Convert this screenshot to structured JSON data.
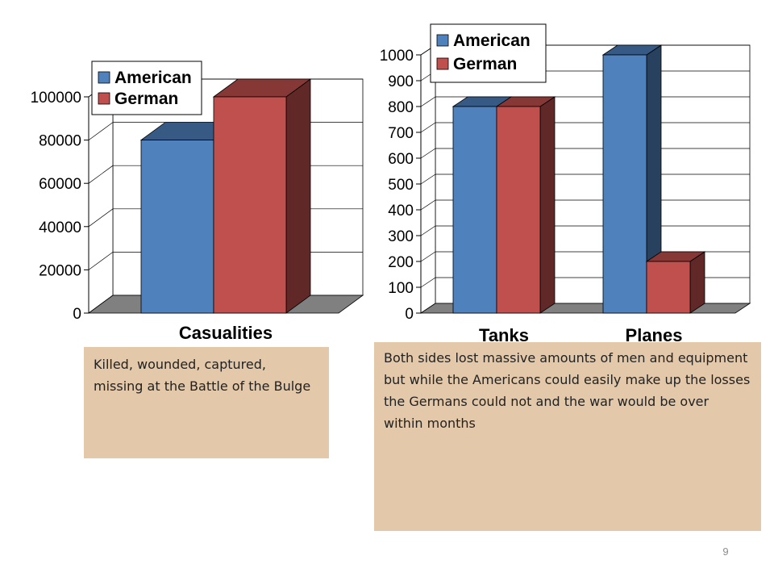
{
  "chart_data": [
    {
      "type": "bar",
      "categories": [
        "Casualities"
      ],
      "series": [
        {
          "name": "American",
          "values": [
            80000
          ],
          "color": "#4f81bd"
        },
        {
          "name": "German",
          "values": [
            100000
          ],
          "color": "#c0504d"
        }
      ],
      "yticks": [
        "0",
        "20000",
        "40000",
        "60000",
        "80000",
        "100000"
      ],
      "ylim": [
        0,
        100000
      ],
      "grid": true,
      "legend": "top-left",
      "title": "",
      "xlabel": "",
      "ylabel": ""
    },
    {
      "type": "bar",
      "categories": [
        "Tanks",
        "Planes"
      ],
      "series": [
        {
          "name": "American",
          "values": [
            800,
            1000
          ],
          "color": "#4f81bd"
        },
        {
          "name": "German",
          "values": [
            800,
            200
          ],
          "color": "#c0504d"
        }
      ],
      "yticks": [
        "0",
        "100",
        "200",
        "300",
        "400",
        "500",
        "600",
        "700",
        "800",
        "900",
        "1000"
      ],
      "ylim": [
        0,
        1000
      ],
      "grid": true,
      "legend": "top-left",
      "title": "",
      "xlabel": "",
      "ylabel": ""
    }
  ],
  "captions": {
    "left": "Killed, wounded, captured, missing at the Battle of the Bulge",
    "right": "Both sides lost massive amounts of men and equipment but while the Americans could easily make up the losses the Germans could not and the war would be over within months"
  },
  "slide_number": "9"
}
